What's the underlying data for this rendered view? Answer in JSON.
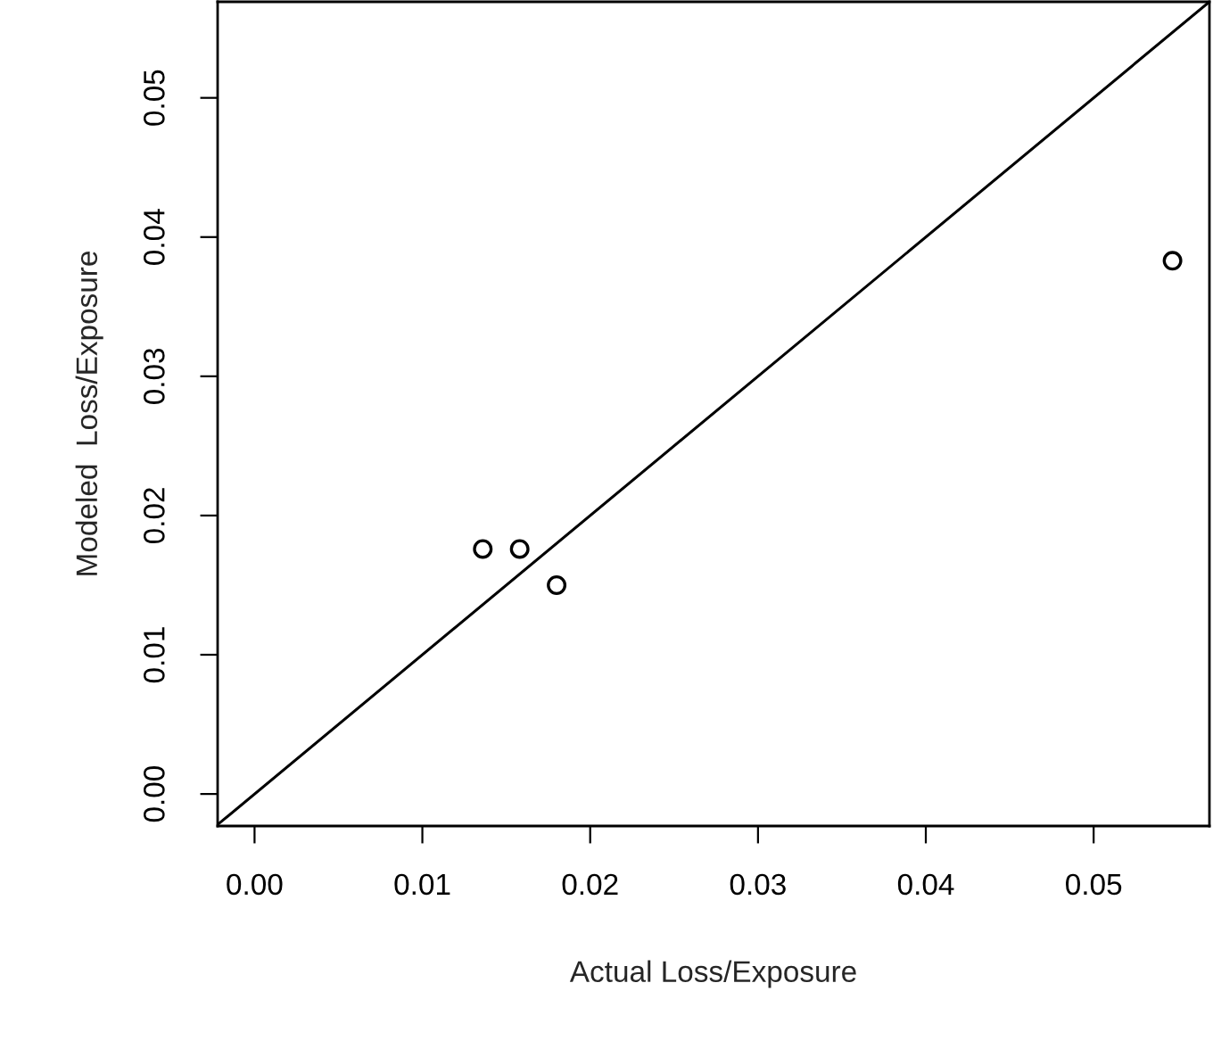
{
  "chart_data": {
    "type": "scatter",
    "xlabel": "Actual Loss/Exposure",
    "ylabel": "Modeled  Loss/Exposure",
    "xlim": [
      -0.0022,
      0.0569
    ],
    "ylim": [
      -0.0023,
      0.0569
    ],
    "xticks": [
      {
        "value": 0,
        "label": "0.00"
      },
      {
        "value": 0.01,
        "label": "0.01"
      },
      {
        "value": 0.02,
        "label": "0.02"
      },
      {
        "value": 0.03,
        "label": "0.03"
      },
      {
        "value": 0.04,
        "label": "0.04"
      },
      {
        "value": 0.05,
        "label": "0.05"
      }
    ],
    "yticks": [
      {
        "value": 0,
        "label": "0.00"
      },
      {
        "value": 0.01,
        "label": "0.01"
      },
      {
        "value": 0.02,
        "label": "0.02"
      },
      {
        "value": 0.03,
        "label": "0.03"
      },
      {
        "value": 0.04,
        "label": "0.04"
      },
      {
        "value": 0.05,
        "label": "0.05"
      }
    ],
    "grid": false,
    "legend": false,
    "marker": "circle",
    "series": [
      {
        "color": "#000000",
        "x": [
          0.0136,
          0.0158,
          0.018,
          0.0547
        ],
        "values": [
          0.0176,
          0.0176,
          0.015,
          0.0383
        ]
      },
      {
        "type": "line",
        "color": "#000000",
        "x": [
          -0.0022,
          0.0569
        ],
        "values": [
          -0.0022,
          0.0569
        ],
        "line_style": "solid",
        "marker": "none"
      }
    ]
  }
}
